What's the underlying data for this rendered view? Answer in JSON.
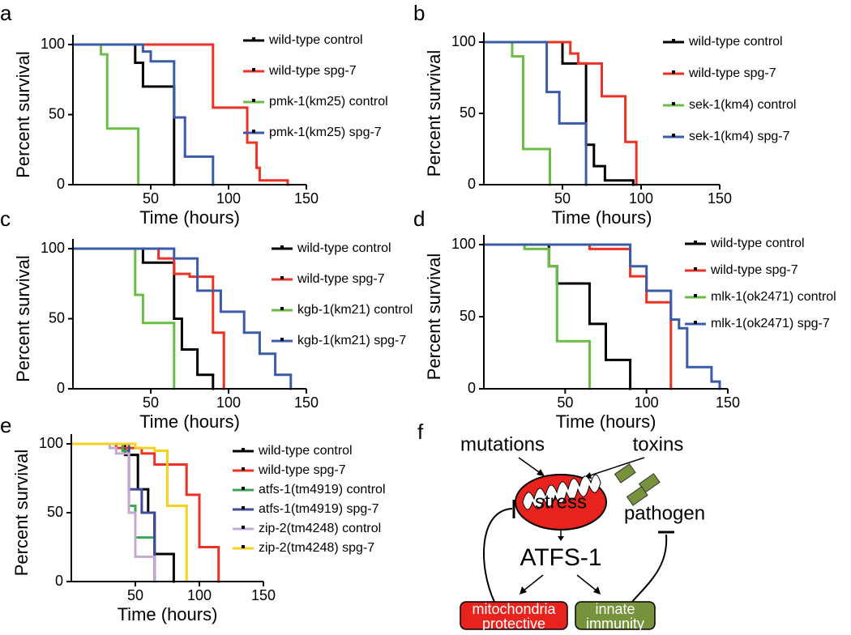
{
  "chart_data": [
    {
      "type": "line",
      "label": "a",
      "xlabel": "Time (hours)",
      "ylabel": "Percent survival",
      "xlim": [
        0,
        150
      ],
      "ylim": [
        0,
        100
      ],
      "xticks": [
        50,
        100,
        150
      ],
      "yticks": [
        0,
        50,
        100
      ],
      "series": [
        {
          "name": "wild-type control",
          "color": "#000000",
          "x": [
            0,
            40,
            45,
            65
          ],
          "values": [
            100,
            87,
            70,
            0
          ]
        },
        {
          "name": "wild-type spg-7",
          "color": "#ee3124",
          "x": [
            0,
            90,
            112,
            118,
            120,
            138
          ],
          "values": [
            100,
            55,
            30,
            12,
            3,
            0
          ]
        },
        {
          "name": "pmk-1(km25) control",
          "color": "#6cbd45",
          "x": [
            0,
            18,
            22,
            42
          ],
          "values": [
            100,
            93,
            40,
            0
          ]
        },
        {
          "name": "pmk-1(km25) spg-7",
          "color": "#3a5ba9",
          "x": [
            0,
            45,
            50,
            65,
            72,
            90
          ],
          "values": [
            100,
            95,
            88,
            48,
            20,
            0
          ]
        }
      ]
    },
    {
      "type": "line",
      "label": "b",
      "xlabel": "Time (hours)",
      "ylabel": "Percent survival",
      "xlim": [
        0,
        150
      ],
      "ylim": [
        0,
        100
      ],
      "xticks": [
        50,
        100,
        150
      ],
      "yticks": [
        0,
        50,
        100
      ],
      "series": [
        {
          "name": "wild-type control",
          "color": "#000000",
          "x": [
            0,
            50,
            65,
            70,
            77,
            95
          ],
          "values": [
            100,
            85,
            28,
            13,
            3,
            0
          ]
        },
        {
          "name": "wild-type spg-7",
          "color": "#ee3124",
          "x": [
            0,
            55,
            60,
            75,
            90,
            97
          ],
          "values": [
            100,
            92,
            85,
            62,
            30,
            0
          ]
        },
        {
          "name": "sek-1(km4) control",
          "color": "#6cbd45",
          "x": [
            0,
            18,
            25,
            42
          ],
          "values": [
            100,
            90,
            25,
            0
          ]
        },
        {
          "name": "sek-1(km4) spg-7",
          "color": "#3a5ba9",
          "x": [
            0,
            40,
            48,
            65
          ],
          "values": [
            100,
            65,
            43,
            0
          ]
        }
      ]
    },
    {
      "type": "line",
      "label": "c",
      "xlabel": "Time (hours)",
      "ylabel": "Percent survival",
      "xlim": [
        0,
        150
      ],
      "ylim": [
        0,
        100
      ],
      "xticks": [
        50,
        100,
        150
      ],
      "yticks": [
        0,
        50,
        100
      ],
      "series": [
        {
          "name": "wild-type control",
          "color": "#000000",
          "x": [
            0,
            45,
            65,
            70,
            80,
            90
          ],
          "values": [
            100,
            90,
            50,
            28,
            10,
            0
          ]
        },
        {
          "name": "wild-type spg-7",
          "color": "#ee3124",
          "x": [
            0,
            55,
            65,
            75,
            90,
            97
          ],
          "values": [
            100,
            93,
            82,
            80,
            40,
            0
          ]
        },
        {
          "name": "kgb-1(km21) control",
          "color": "#6cbd45",
          "x": [
            0,
            40,
            45,
            65
          ],
          "values": [
            100,
            67,
            47,
            0
          ]
        },
        {
          "name": "kgb-1(km21) spg-7",
          "color": "#3a5ba9",
          "x": [
            0,
            65,
            80,
            95,
            110,
            120,
            130,
            140
          ],
          "values": [
            100,
            93,
            70,
            55,
            40,
            25,
            10,
            0
          ]
        }
      ]
    },
    {
      "type": "line",
      "label": "d",
      "xlabel": "Time (hours)",
      "ylabel": "Percent survival",
      "xlim": [
        0,
        150
      ],
      "ylim": [
        0,
        100
      ],
      "xticks": [
        50,
        100,
        150
      ],
      "yticks": [
        0,
        50,
        100
      ],
      "series": [
        {
          "name": "wild-type control",
          "color": "#000000",
          "x": [
            0,
            40,
            45,
            65,
            75,
            90
          ],
          "values": [
            100,
            85,
            73,
            45,
            20,
            0
          ]
        },
        {
          "name": "wild-type spg-7",
          "color": "#ee3124",
          "x": [
            0,
            65,
            90,
            100,
            115
          ],
          "values": [
            100,
            97,
            78,
            60,
            0
          ]
        },
        {
          "name": "mlk-1(ok2471) control",
          "color": "#6cbd45",
          "x": [
            0,
            25,
            40,
            45,
            65
          ],
          "values": [
            100,
            97,
            85,
            33,
            0
          ]
        },
        {
          "name": "mlk-1(ok2471) spg-7",
          "color": "#3a5ba9",
          "x": [
            0,
            90,
            100,
            115,
            120,
            125,
            140,
            145
          ],
          "values": [
            100,
            85,
            68,
            48,
            42,
            15,
            5,
            0
          ]
        }
      ]
    },
    {
      "type": "line",
      "label": "e",
      "xlabel": "Time (hours)",
      "ylabel": "Percent survival",
      "xlim": [
        0,
        150
      ],
      "ylim": [
        0,
        100
      ],
      "xticks": [
        50,
        100,
        150
      ],
      "yticks": [
        0,
        50,
        100
      ],
      "series": [
        {
          "name": "wild-type control",
          "color": "#000000",
          "x": [
            0,
            42,
            52,
            60,
            65,
            80
          ],
          "values": [
            100,
            92,
            67,
            50,
            20,
            0
          ]
        },
        {
          "name": "wild-type spg-7",
          "color": "#ee3124",
          "x": [
            0,
            35,
            55,
            65,
            90,
            100,
            115
          ],
          "values": [
            100,
            97,
            93,
            85,
            63,
            25,
            0
          ]
        },
        {
          "name": "atfs-1(tm4919) control",
          "color": "#3aa655",
          "x": [
            0,
            40,
            45,
            50,
            65
          ],
          "values": [
            100,
            95,
            55,
            32,
            0
          ]
        },
        {
          "name": "atfs-1(tm4919) spg-7",
          "color": "#3f4a9a",
          "x": [
            0,
            45,
            55,
            65
          ],
          "values": [
            100,
            67,
            50,
            0
          ]
        },
        {
          "name": "zip-2(tm4248) control",
          "color": "#c4a8d4",
          "x": [
            0,
            30,
            35,
            45,
            50,
            65
          ],
          "values": [
            100,
            97,
            93,
            50,
            18,
            0
          ]
        },
        {
          "name": "zip-2(tm4248) spg-7",
          "color": "#f7d21a",
          "x": [
            0,
            50,
            65,
            75,
            90
          ],
          "values": [
            100,
            97,
            95,
            55,
            0
          ]
        }
      ]
    }
  ],
  "diagram": {
    "label": "f",
    "inputs": [
      "mutations",
      "toxins"
    ],
    "center": "stress",
    "pathogen": "pathogen",
    "factor": "ATFS-1",
    "outputs": [
      [
        "mitochondria",
        "protective"
      ],
      [
        "innate",
        "immunity"
      ]
    ]
  }
}
